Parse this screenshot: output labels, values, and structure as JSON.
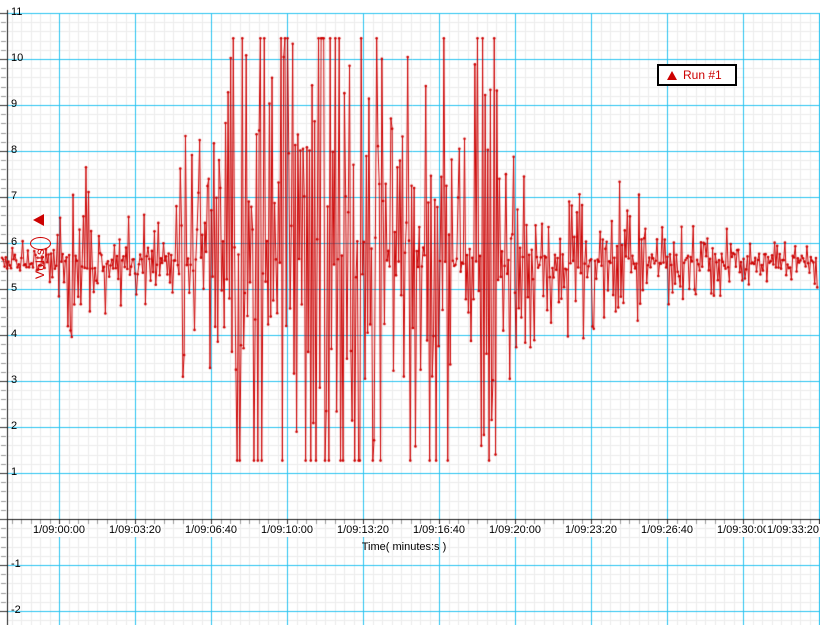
{
  "chart_data": {
    "type": "line",
    "title": "",
    "xlabel": "Time( minutes:s )",
    "ylabel": "Volts",
    "ylim": [
      -2,
      11
    ],
    "grid": {
      "background": "#ffffff",
      "major_color": "#29c3f1",
      "minor_color": "#ececec",
      "axis_color": "#1a1a1a",
      "minor_per_major_x": 8,
      "minor_per_major_y": 5
    },
    "legend": {
      "position": "top-right",
      "background": "#ffffff",
      "border_color": "#000000"
    },
    "x_ticks": [
      {
        "t": 0,
        "label": "1/09:00:00"
      },
      {
        "t": 200,
        "label": "1/09:03:20"
      },
      {
        "t": 400,
        "label": "1/09:06:40"
      },
      {
        "t": 600,
        "label": "1/09:10:00"
      },
      {
        "t": 800,
        "label": "1/09:13:20"
      },
      {
        "t": 1000,
        "label": "1/09:16:40"
      },
      {
        "t": 1200,
        "label": "1/09:20:00"
      },
      {
        "t": 1400,
        "label": "1/09:23:20"
      },
      {
        "t": 1600,
        "label": "1/09:26:40"
      },
      {
        "t": 1800,
        "label": "1/09:30:00"
      },
      {
        "t": 2000,
        "label": "1/09:33:20"
      }
    ],
    "y_ticks": [
      {
        "value": 11,
        "label": "11"
      },
      {
        "value": 10,
        "label": "10"
      },
      {
        "value": 9,
        "label": "9"
      },
      {
        "value": 8,
        "label": "8"
      },
      {
        "value": 7,
        "label": "7"
      },
      {
        "value": 6,
        "label": "6"
      },
      {
        "value": 5,
        "label": "5"
      },
      {
        "value": 4,
        "label": "4"
      },
      {
        "value": 3,
        "label": "3"
      },
      {
        "value": 2,
        "label": "2"
      },
      {
        "value": 1,
        "label": "1"
      },
      {
        "value": 0,
        "label": ""
      },
      {
        "value": -1,
        "label": "-1"
      },
      {
        "value": -2,
        "label": "-2"
      }
    ],
    "series": [
      {
        "name": "Run #1",
        "color": "#cc0000",
        "marker": "dot",
        "line_width": 1,
        "baseline_volts": 5.6,
        "clip_high_volts": 10.45,
        "clip_low_volts": 1.27,
        "sample_interval_seconds": 3.4,
        "time_range_seconds": [
          -150,
          1997
        ],
        "envelope_t_amp": [
          [
            -150,
            0.35
          ],
          [
            -76,
            0.35
          ],
          [
            -24,
            0.5
          ],
          [
            8,
            0.95
          ],
          [
            29,
            1.7
          ],
          [
            50,
            2.3
          ],
          [
            76,
            1.8
          ],
          [
            103,
            1.2
          ],
          [
            134,
            0.85
          ],
          [
            182,
            0.75
          ],
          [
            226,
            0.9
          ],
          [
            266,
            0.85
          ],
          [
            292,
            1.1
          ],
          [
            318,
            2.0
          ],
          [
            345,
            3.3
          ],
          [
            371,
            2.7
          ],
          [
            392,
            2.3
          ],
          [
            413,
            2.7
          ],
          [
            439,
            3.2
          ],
          [
            466,
            4.0
          ],
          [
            492,
            4.9
          ],
          [
            518,
            5.1
          ],
          [
            545,
            4.7
          ],
          [
            571,
            4.9
          ],
          [
            603,
            4.5
          ],
          [
            629,
            3.9
          ],
          [
            650,
            3.5
          ],
          [
            666,
            3.6
          ],
          [
            687,
            4.8
          ],
          [
            713,
            5.1
          ],
          [
            745,
            4.9
          ],
          [
            779,
            5.1
          ],
          [
            813,
            4.8
          ],
          [
            839,
            4.2
          ],
          [
            866,
            3.4
          ],
          [
            892,
            3.3
          ],
          [
            918,
            4.5
          ],
          [
            945,
            5.0
          ],
          [
            971,
            5.1
          ],
          [
            997,
            4.9
          ],
          [
            1024,
            3.7
          ],
          [
            1045,
            2.5
          ],
          [
            1071,
            2.1
          ],
          [
            1092,
            3.4
          ],
          [
            1113,
            4.9
          ],
          [
            1134,
            4.7
          ],
          [
            1153,
            3.5
          ],
          [
            1174,
            2.3
          ],
          [
            1200,
            1.9
          ],
          [
            1226,
            1.7
          ],
          [
            1247,
            2.0
          ],
          [
            1268,
            2.1
          ],
          [
            1292,
            1.8
          ],
          [
            1324,
            1.5
          ],
          [
            1358,
            1.45
          ],
          [
            1397,
            1.35
          ],
          [
            1437,
            1.3
          ],
          [
            1466,
            1.5
          ],
          [
            1497,
            1.45
          ],
          [
            1529,
            1.15
          ],
          [
            1568,
            1.0
          ],
          [
            1608,
            0.85
          ],
          [
            1647,
            0.72
          ],
          [
            1687,
            0.62
          ],
          [
            1739,
            0.55
          ],
          [
            1805,
            0.5
          ],
          [
            1871,
            0.45
          ],
          [
            1950,
            0.42
          ],
          [
            1997,
            0.45
          ]
        ]
      }
    ],
    "annotations": {
      "level_marker": {
        "shape": "triangle-left",
        "value_volts": 6.5,
        "color": "#cc0000"
      },
      "ellipse": {
        "center_volts": 6.0,
        "color": "#cc0000"
      }
    }
  }
}
